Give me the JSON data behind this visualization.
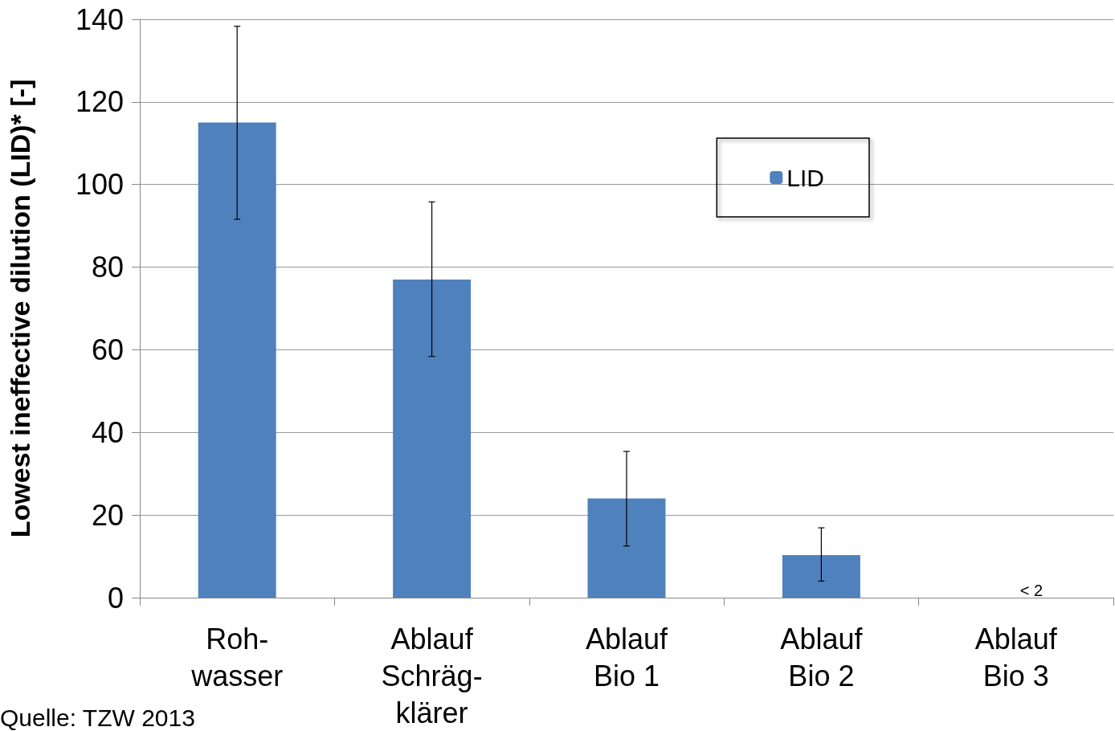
{
  "chart_data": {
    "type": "bar",
    "ylabel": "Lowest ineffective dilution (LID)* [-]",
    "categories": [
      "Roh-\nwasser",
      "Ablauf\nSchräg-\nklärer",
      "Ablauf\nBio 1",
      "Ablauf\nBio 2",
      "Ablauf\nBio 3"
    ],
    "series": [
      {
        "name": "LID",
        "color": "#4f81bd",
        "values": [
          115,
          77,
          24,
          10.3,
          null
        ],
        "errors": [
          [
            91.6,
            138.3
          ],
          [
            58.4,
            95.8
          ],
          [
            12.5,
            35.4
          ],
          [
            4,
            16.9
          ],
          null
        ]
      }
    ],
    "ylim": [
      0,
      140
    ],
    "yticks": [
      0,
      20,
      40,
      60,
      80,
      100,
      120,
      140
    ],
    "grid": "y",
    "legend": "top right",
    "annotations": [
      "< 2",
      "Quelle: TZW 2013"
    ]
  }
}
